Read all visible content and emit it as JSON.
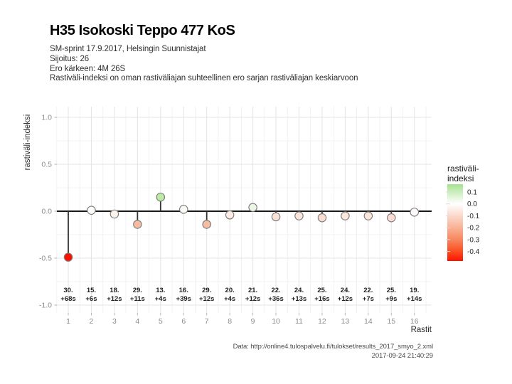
{
  "header": {
    "title": "H35 Isokoski Teppo 477 KoS",
    "subtitle_lines": [
      "SM-sprint 17.9.2017, Helsingin Suunnistajat",
      "Sijoitus: 26",
      "Ero kärkeen: 4M 26S",
      "Rastiväli-indeksi on oman rastiväliajan suhteellinen ero sarjan rastiväliajan keskiarvoon"
    ]
  },
  "chart_data": {
    "type": "scatter",
    "subtype": "lollipop-stem",
    "title": "H35 Isokoski Teppo 477 KoS",
    "xlabel": "Rastit",
    "ylabel": "rastiväli-indeksi",
    "xlim": [
      0.45,
      16.75
    ],
    "ylim": [
      -1.08,
      1.11
    ],
    "yticks": [
      1.0,
      0.5,
      0.0,
      -0.5,
      -1.0
    ],
    "ytick_labels": [
      "1.0",
      "0.5",
      "0.0",
      "-0.5",
      "-1.0"
    ],
    "xticks": [
      1,
      2,
      3,
      4,
      5,
      6,
      7,
      8,
      9,
      10,
      11,
      12,
      13,
      14,
      15,
      16
    ],
    "grid": true,
    "zero_line": true,
    "points": [
      {
        "x": 1,
        "value": -0.49,
        "place": "30.",
        "diff": "+68s",
        "color": "#fb1000"
      },
      {
        "x": 2,
        "value": 0.01,
        "place": "15.",
        "diff": "+6s",
        "color": "#fcfef9"
      },
      {
        "x": 3,
        "value": -0.03,
        "place": "18.",
        "diff": "+12s",
        "color": "#fdf2ec"
      },
      {
        "x": 4,
        "value": -0.14,
        "place": "29.",
        "diff": "+11s",
        "color": "#f7bba2"
      },
      {
        "x": 5,
        "value": 0.15,
        "place": "13.",
        "diff": "+4s",
        "color": "#bce9a4"
      },
      {
        "x": 6,
        "value": 0.02,
        "place": "16.",
        "diff": "+39s",
        "color": "#f8fcf4"
      },
      {
        "x": 7,
        "value": -0.14,
        "place": "29.",
        "diff": "+12s",
        "color": "#f7bba2"
      },
      {
        "x": 8,
        "value": -0.04,
        "place": "20.",
        "diff": "+4s",
        "color": "#fcece4"
      },
      {
        "x": 9,
        "value": 0.04,
        "place": "21.",
        "diff": "+12s",
        "color": "#ebf7e3"
      },
      {
        "x": 10,
        "value": -0.06,
        "place": "22.",
        "diff": "+36s",
        "color": "#fbe1d6"
      },
      {
        "x": 11,
        "value": -0.05,
        "place": "24.",
        "diff": "+13s",
        "color": "#fbe6dc"
      },
      {
        "x": 12,
        "value": -0.07,
        "place": "25.",
        "diff": "+16s",
        "color": "#fadcd0"
      },
      {
        "x": 13,
        "value": -0.05,
        "place": "24.",
        "diff": "+12s",
        "color": "#fbe6dc"
      },
      {
        "x": 14,
        "value": -0.05,
        "place": "22.",
        "diff": "+7s",
        "color": "#fbe6dc"
      },
      {
        "x": 15,
        "value": -0.07,
        "place": "25.",
        "diff": "+9s",
        "color": "#fadcd0"
      },
      {
        "x": 16,
        "value": -0.01,
        "place": "19.",
        "diff": "+14s",
        "color": "#fffbfa"
      }
    ],
    "legend": {
      "position": "right",
      "title_lines": [
        "rastiväli-",
        "indeksi"
      ],
      "ticks": [
        0.1,
        0.0,
        -0.1,
        -0.2,
        -0.3,
        -0.4
      ],
      "tick_labels": [
        "0.1",
        "0.0",
        "-0.1",
        "-0.2",
        "-0.3",
        "-0.4"
      ],
      "value_range": [
        -0.48,
        0.165
      ],
      "gradient_stops": [
        {
          "pos": 0.0,
          "color": "#a6e28f"
        },
        {
          "pos": 0.256,
          "color": "#ffffff"
        },
        {
          "pos": 0.41,
          "color": "#fbd9cb"
        },
        {
          "pos": 0.565,
          "color": "#f9b295"
        },
        {
          "pos": 0.72,
          "color": "#f8875f"
        },
        {
          "pos": 0.875,
          "color": "#fb4e20"
        },
        {
          "pos": 1.0,
          "color": "#fc1300"
        }
      ]
    },
    "style_colors": {
      "grid_major": "#e4e4e4",
      "grid_minor": "#efefef",
      "tick_text": "#8c8c8c",
      "axis_title": "#2b2b2b",
      "zero_line": "#1a1a1a",
      "stem": "#333333",
      "point_stroke": "#7a7a7a",
      "point_label": "#1f1f1f"
    }
  },
  "footer": {
    "source": "Data: http://online4.tulospalvelu.fi/tulokset/results_2017_smyo_2.xml",
    "timestamp": "2017-09-24 21:40:29"
  }
}
